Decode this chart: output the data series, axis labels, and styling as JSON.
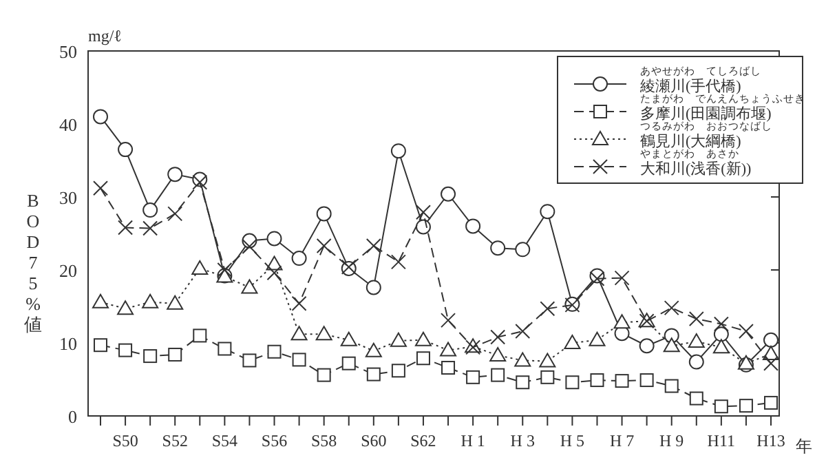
{
  "chart_data": {
    "type": "line",
    "ylabel": "BOD75%値",
    "xlabel": "年",
    "annotations": [
      "mg/ℓ",
      "あやせがわ　てしろばし",
      "たまがわ　でんえんちょうふせき",
      "つるみがわ　おおつなばし",
      "やまとがわ　あさか"
    ],
    "categories": [
      null,
      "S50",
      null,
      "S52",
      null,
      "S54",
      null,
      "S56",
      null,
      "S58",
      null,
      "S60",
      null,
      "S62",
      null,
      "H 1",
      null,
      "H 3",
      null,
      "H 5",
      null,
      "H 7",
      null,
      "H 9",
      null,
      "H11",
      null,
      "H13"
    ],
    "ylim": [
      0,
      50
    ],
    "yticks": [
      0,
      10,
      20,
      30,
      40,
      50
    ],
    "grid": false,
    "legend": "top right",
    "series": [
      {
        "name": "綾瀬川(手代橋)",
        "color": "#333333",
        "marker": "circle",
        "line_style": "solid",
        "values": [
          41,
          36.5,
          28.2,
          33.1,
          32.4,
          19.2,
          24,
          24.3,
          21.6,
          27.7,
          20.2,
          17.6,
          36.3,
          25.9,
          30.4,
          26,
          23,
          22.8,
          28,
          15.3,
          19.2,
          11.3,
          9.6,
          11,
          7.4,
          11.2,
          7,
          10.4
        ]
      },
      {
        "name": "多摩川(田園調布堰)",
        "color": "#333333",
        "marker": "square",
        "line_style": "dashed",
        "values": [
          9.7,
          9,
          8.2,
          8.4,
          11,
          9.2,
          7.6,
          8.8,
          7.7,
          5.6,
          7.2,
          5.7,
          6.2,
          7.9,
          6.6,
          5.3,
          5.6,
          4.6,
          5.3,
          4.6,
          4.9,
          4.8,
          4.9,
          4.1,
          2.4,
          1.3,
          1.4,
          1.8
        ]
      },
      {
        "name": "鶴見川(大綱橋)",
        "color": "#333333",
        "marker": "triangle",
        "line_style": "dotted",
        "values": [
          15.6,
          14.7,
          15.6,
          15.4,
          20.2,
          19.1,
          17.6,
          20.8,
          11.2,
          11.2,
          10.4,
          8.9,
          10.3,
          10.4,
          9,
          9.5,
          8.3,
          7.6,
          7.5,
          10,
          10.4,
          12.8,
          13,
          9.6,
          10.2,
          9.4,
          7.2,
          8.5
        ]
      },
      {
        "name": "大和川(浅香(新))",
        "color": "#333333",
        "marker": "cross",
        "line_style": "dashed",
        "values": [
          31.2,
          25.8,
          25.7,
          27.7,
          32,
          20,
          23.2,
          19.6,
          15.4,
          23.3,
          20.4,
          23.3,
          21.1,
          27.9,
          13.1,
          9.4,
          10.8,
          11.6,
          14.7,
          15.2,
          18.8,
          18.9,
          13,
          14.8,
          13.3,
          12.6,
          11.6,
          7.2
        ]
      }
    ]
  }
}
